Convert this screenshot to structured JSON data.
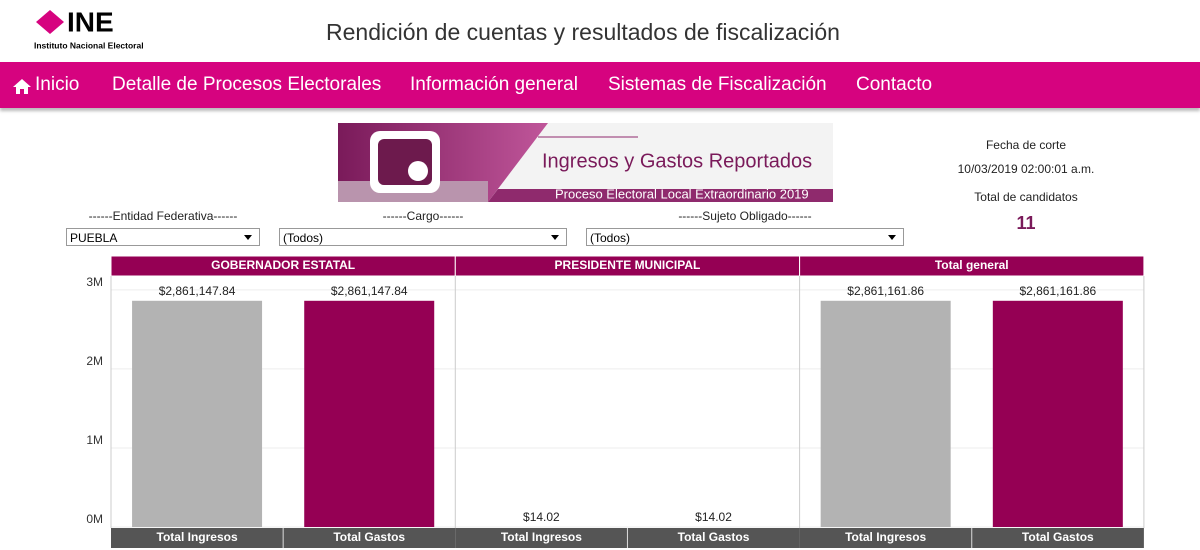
{
  "header": {
    "logo": "INE",
    "logo_subtitle": "Instituto Nacional Electoral",
    "title": "Rendición de cuentas y resultados de fiscalización"
  },
  "nav": [
    "Inicio",
    "Detalle de Procesos Electorales",
    "Información general",
    "Sistemas de Fiscalización",
    "Contacto"
  ],
  "banner": {
    "title": "Ingresos y Gastos Reportados",
    "subtitle": "Proceso Electoral Local Extraordinario 2019"
  },
  "info": {
    "cutoff_label": "Fecha de corte",
    "cutoff": "10/03/2019 02:00:01 a.m.",
    "candidates_label": "Total de candidatos",
    "candidates": 11
  },
  "filters": [
    {
      "label": "------Entidad Federativa------",
      "value": "PUEBLA"
    },
    {
      "label": "------Cargo------",
      "value": "(Todos)"
    },
    {
      "label": "------Sujeto Obligado------",
      "value": "(Todos)"
    }
  ],
  "chart_data": {
    "type": "bar",
    "ylim": [
      0,
      3200000
    ],
    "yticks": [
      {
        "value": 0,
        "label": "0M"
      },
      {
        "value": 1000000,
        "label": "1M"
      },
      {
        "value": 2000000,
        "label": "2M"
      },
      {
        "value": 3000000,
        "label": "3M"
      }
    ],
    "grid": true,
    "colors": [
      "#b3b3b3",
      "#950054"
    ],
    "panels": [
      {
        "title": "GOBERNADOR ESTATAL",
        "categories": [
          "Total Ingresos",
          "Total Gastos"
        ],
        "values": [
          2861147.84,
          2861147.84
        ],
        "value_labels": [
          "$2,861,147.84",
          "$2,861,147.84"
        ]
      },
      {
        "title": "PRESIDENTE MUNICIPAL",
        "categories": [
          "Total Ingresos",
          "Total Gastos"
        ],
        "values": [
          14.02,
          14.02
        ],
        "value_labels": [
          "$14.02",
          "$14.02"
        ]
      },
      {
        "title": "Total general",
        "categories": [
          "Total Ingresos",
          "Total Gastos"
        ],
        "values": [
          2861161.86,
          2861161.86
        ],
        "value_labels": [
          "$2,861,161.86",
          "$2,861,161.86"
        ]
      }
    ]
  }
}
